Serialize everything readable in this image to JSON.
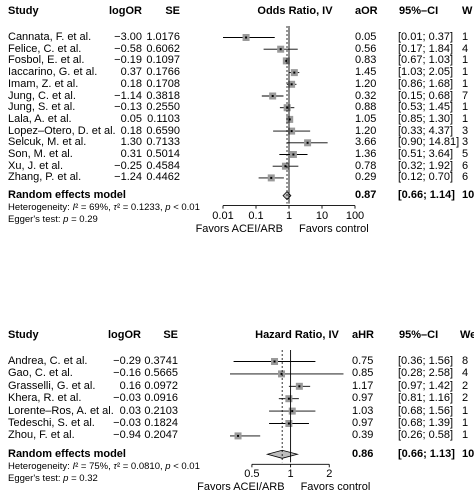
{
  "chart_data": [
    {
      "type": "forest",
      "measure": "OR",
      "headers": [
        "Study",
        "logOR",
        "SE",
        "Odds Ratio, IV",
        "aOR",
        "95%–CI",
        "W"
      ],
      "studies": [
        {
          "study": "Cannata, F. et al.",
          "log": "−3.00",
          "se": "1.0176",
          "est": 0.05,
          "lo": 0.01,
          "hi": 0.37,
          "est_txt": "0.05",
          "ci_txt": "[0.01; 0.37]",
          "w": "1"
        },
        {
          "study": "Felice, C. et al.",
          "log": "−0.58",
          "se": "0.6062",
          "est": 0.56,
          "lo": 0.17,
          "hi": 1.84,
          "est_txt": "0.56",
          "ci_txt": "[0.17; 1.84]",
          "w": "4"
        },
        {
          "study": "Fosbol, E. et al.",
          "log": "−0.19",
          "se": "0.1097",
          "est": 0.83,
          "lo": 0.67,
          "hi": 1.03,
          "est_txt": "0.83",
          "ci_txt": "[0.67; 1.03]",
          "w": "1"
        },
        {
          "study": "Iaccarino, G. et al.",
          "log": "0.37",
          "se": "0.1766",
          "est": 1.45,
          "lo": 1.03,
          "hi": 2.05,
          "est_txt": "1.45",
          "ci_txt": "[1.03; 2.05]",
          "w": "1"
        },
        {
          "study": "Imam, Z. et al.",
          "log": "0.18",
          "se": "0.1708",
          "est": 1.2,
          "lo": 0.86,
          "hi": 1.68,
          "est_txt": "1.20",
          "ci_txt": "[0.86; 1.68]",
          "w": "1"
        },
        {
          "study": "Jung, C. et al.",
          "log": "−1.14",
          "se": "0.3818",
          "est": 0.32,
          "lo": 0.15,
          "hi": 0.68,
          "est_txt": "0.32",
          "ci_txt": "[0.15; 0.68]",
          "w": "7"
        },
        {
          "study": "Jung, S. et al.",
          "log": "−0.13",
          "se": "0.2550",
          "est": 0.88,
          "lo": 0.53,
          "hi": 1.45,
          "est_txt": "0.88",
          "ci_txt": "[0.53; 1.45]",
          "w": "1"
        },
        {
          "study": "Lala, A. et al.",
          "log": "0.05",
          "se": "0.1103",
          "est": 1.05,
          "lo": 0.85,
          "hi": 1.3,
          "est_txt": "1.05",
          "ci_txt": "[0.85; 1.30]",
          "w": "1"
        },
        {
          "study": "Lopez–Otero, D. et al.",
          "log": "0.18",
          "se": "0.6590",
          "est": 1.2,
          "lo": 0.33,
          "hi": 4.37,
          "est_txt": "1.20",
          "ci_txt": "[0.33; 4.37]",
          "w": "3"
        },
        {
          "study": "Selcuk, M. et al.",
          "log": "1.30",
          "se": "0.7133",
          "est": 3.66,
          "lo": 0.9,
          "hi": 14.81,
          "est_txt": "3.66",
          "ci_txt": "[0.90; 14.81]",
          "w": "3"
        },
        {
          "study": "Son, M. et al.",
          "log": "0.31",
          "se": "0.5014",
          "est": 1.36,
          "lo": 0.51,
          "hi": 3.64,
          "est_txt": "1.36",
          "ci_txt": "[0.51; 3.64]",
          "w": "5"
        },
        {
          "study": "Xu, J. et al.",
          "log": "−0.25",
          "se": "0.4584",
          "est": 0.78,
          "lo": 0.32,
          "hi": 1.92,
          "est_txt": "0.78",
          "ci_txt": "[0.32; 1.92]",
          "w": "6"
        },
        {
          "study": "Zhang, P. et al.",
          "log": "−1.24",
          "se": "0.4462",
          "est": 0.29,
          "lo": 0.12,
          "hi": 0.7,
          "est_txt": "0.29",
          "ci_txt": "[0.12; 0.70]",
          "w": "6"
        }
      ],
      "pooled": {
        "label": "Random effects model",
        "est": 0.87,
        "lo": 0.66,
        "hi": 1.14,
        "est_txt": "0.87",
        "ci_txt": "[0.66; 1.14]",
        "w": "10"
      },
      "heterogeneity": "Heterogeneity: I² = 69%, τ² = 0.1233, p < 0.01",
      "egger": "Egger's test: p = 0.29",
      "x_scale": "log",
      "xlim": [
        0.01,
        100
      ],
      "ticks": [
        "0.01",
        "0.1",
        "1",
        "10",
        "100"
      ],
      "favors_left": "Favors ACEI/ARB",
      "favors_right": "Favors control"
    },
    {
      "type": "forest",
      "measure": "HR",
      "headers": [
        "Study",
        "logOR",
        "SE",
        "Hazard Ratio, IV",
        "aHR",
        "95%–CI",
        "We"
      ],
      "studies": [
        {
          "study": "Andrea, C. et al.",
          "log": "−0.29",
          "se": "0.3741",
          "est": 0.75,
          "lo": 0.36,
          "hi": 1.56,
          "est_txt": "0.75",
          "ci_txt": "[0.36; 1.56]",
          "w": "8"
        },
        {
          "study": "Gao, C. et al.",
          "log": "−0.16",
          "se": "0.5665",
          "est": 0.85,
          "lo": 0.28,
          "hi": 2.58,
          "est_txt": "0.85",
          "ci_txt": "[0.28; 2.58]",
          "w": "4"
        },
        {
          "study": "Grasselli, G. et al.",
          "log": "0.16",
          "se": "0.0972",
          "est": 1.17,
          "lo": 0.97,
          "hi": 1.42,
          "est_txt": "1.17",
          "ci_txt": "[0.97; 1.42]",
          "w": "2"
        },
        {
          "study": "Khera, R. et al.",
          "log": "−0.03",
          "se": "0.0916",
          "est": 0.97,
          "lo": 0.81,
          "hi": 1.16,
          "est_txt": "0.97",
          "ci_txt": "[0.81; 1.16]",
          "w": "2"
        },
        {
          "study": "Lorente–Ros, A. et al.",
          "log": "0.03",
          "se": "0.2103",
          "est": 1.03,
          "lo": 0.68,
          "hi": 1.56,
          "est_txt": "1.03",
          "ci_txt": "[0.68; 1.56]",
          "w": "1"
        },
        {
          "study": "Tedeschi, S. et al.",
          "log": "−0.03",
          "se": "0.1824",
          "est": 0.97,
          "lo": 0.68,
          "hi": 1.39,
          "est_txt": "0.97",
          "ci_txt": "[0.68; 1.39]",
          "w": "1"
        },
        {
          "study": "Zhou, F. et al.",
          "log": "−0.94",
          "se": "0.2047",
          "est": 0.39,
          "lo": 0.26,
          "hi": 0.58,
          "est_txt": "0.39",
          "ci_txt": "[0.26; 0.58]",
          "w": "1"
        }
      ],
      "pooled": {
        "label": "Random effects model",
        "est": 0.86,
        "lo": 0.66,
        "hi": 1.13,
        "est_txt": "0.86",
        "ci_txt": "[0.66; 1.13]",
        "w": "10"
      },
      "heterogeneity": "Heterogeneity: I² = 75%, τ² = 0.0810, p < 0.01",
      "egger": "Egger's test: p = 0.32",
      "x_scale": "log",
      "xlim": [
        0.35,
        2.9
      ],
      "ticks": [
        "0.5",
        "1",
        "2"
      ],
      "favors_left": "Favors ACEI/ARB",
      "favors_right": "Favors control"
    }
  ]
}
